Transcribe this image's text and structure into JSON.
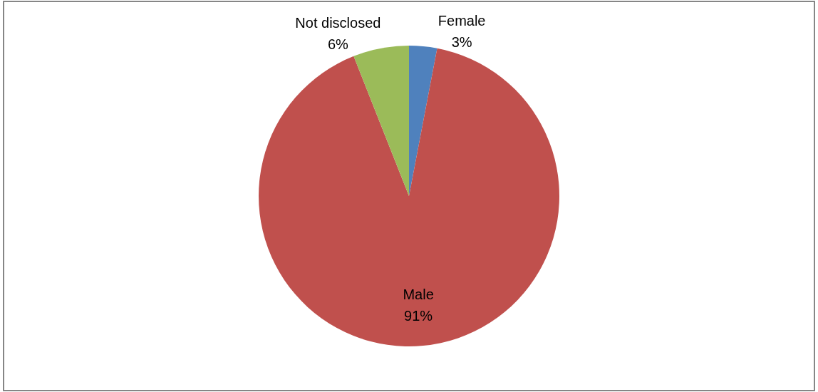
{
  "chart_data": {
    "type": "pie",
    "categories": [
      "Female",
      "Male",
      "Not disclosed"
    ],
    "values": [
      3,
      91,
      6
    ],
    "value_labels": [
      "3%",
      "91%",
      "6%"
    ],
    "colors": [
      "#4f81bd",
      "#c0504d",
      "#9bbb59"
    ],
    "legend": false
  }
}
